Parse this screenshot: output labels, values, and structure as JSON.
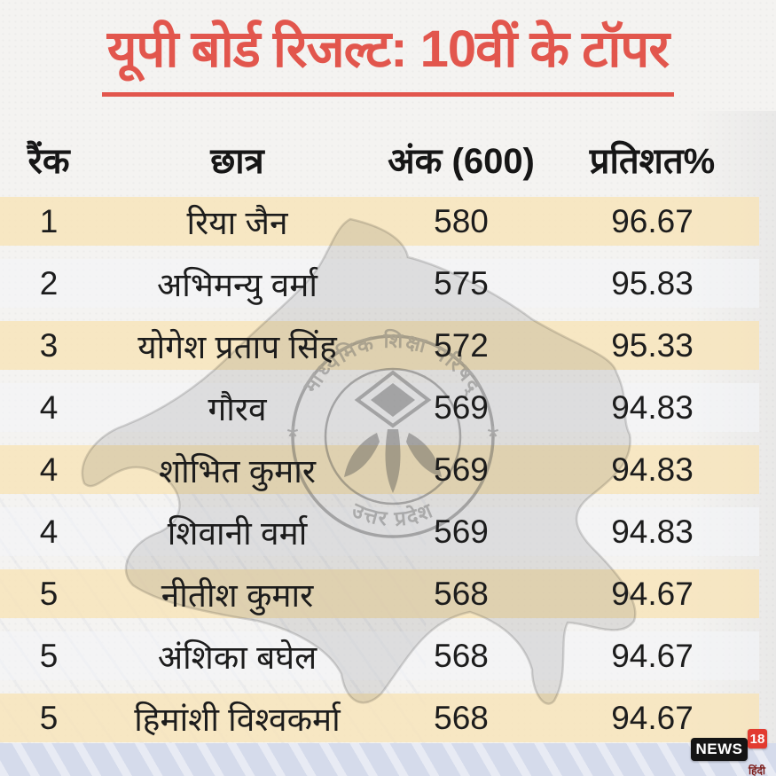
{
  "chart_data": {
    "type": "table",
    "title": "यूपी बोर्ड रिजल्ट: 10वीं के टॉपर",
    "columns": [
      "रैंक",
      "छात्र",
      "अंक (600)",
      "प्रतिशत%"
    ],
    "rows": [
      {
        "rank": "1",
        "student": "रिया जैन",
        "marks": "580",
        "percent": "96.67"
      },
      {
        "rank": "2",
        "student": "अभिमन्यु वर्मा",
        "marks": "575",
        "percent": "95.83"
      },
      {
        "rank": "3",
        "student": "योगेश प्रताप सिंह",
        "marks": "572",
        "percent": "95.33"
      },
      {
        "rank": "4",
        "student": "गौरव",
        "marks": "569",
        "percent": "94.83"
      },
      {
        "rank": "4",
        "student": "शोभित कुमार",
        "marks": "569",
        "percent": "94.83"
      },
      {
        "rank": "4",
        "student": "शिवानी वर्मा",
        "marks": "569",
        "percent": "94.83"
      },
      {
        "rank": "5",
        "student": "नीतीश कुमार",
        "marks": "568",
        "percent": "94.67"
      },
      {
        "rank": "5",
        "student": "अंशिका बघेल",
        "marks": "568",
        "percent": "94.67"
      },
      {
        "rank": "5",
        "student": "हिमांशी विश्वकर्मा",
        "marks": "568",
        "percent": "94.67"
      }
    ],
    "layout": {
      "row_color_odd": "#f7e4bb",
      "row_color_even": "#f3f5f8",
      "title_color": "#e2564d",
      "text_color": "#1c1c1c"
    }
  },
  "watermark": {
    "seal_top": "माध्यमिक शिक्षा परिषद्",
    "seal_bottom": "उत्तर प्रदेश",
    "star_left": "*",
    "star_right": "*"
  },
  "brand": {
    "name": "NEWS",
    "number": "18",
    "lang": "हिंदी"
  }
}
